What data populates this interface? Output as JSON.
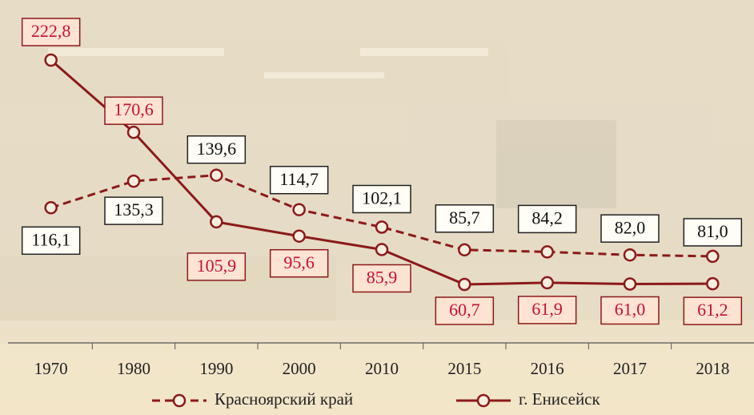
{
  "chart_data": {
    "type": "line",
    "categories": [
      "1970",
      "1980",
      "1990",
      "2000",
      "2010",
      "2015",
      "2016",
      "2017",
      "2018"
    ],
    "series": [
      {
        "name": "Красноярский край",
        "color": "#8b1a1a",
        "style": "dashed",
        "label_color": "#111111",
        "label_fill": "#fffdf5",
        "values": [
          116.1,
          135.3,
          139.6,
          114.7,
          102.1,
          85.7,
          84.2,
          82.0,
          81.0
        ],
        "value_labels": [
          "116,1",
          "135,3",
          "139,6",
          "114,7",
          "102,1",
          "85,7",
          "84,2",
          "82,0",
          "81,0"
        ]
      },
      {
        "name": "г. Енисейск",
        "color": "#8b1a1a",
        "style": "solid",
        "label_color": "#c8102e",
        "label_fill": "#fde3d2",
        "values": [
          222.8,
          170.6,
          105.9,
          95.6,
          85.9,
          60.7,
          61.9,
          61.0,
          61.2
        ],
        "value_labels": [
          "222,8",
          "170,6",
          "105,9",
          "95,6",
          "85,9",
          "60,7",
          "61,9",
          "61,0",
          "61,2"
        ]
      }
    ],
    "legend": "bottom"
  }
}
